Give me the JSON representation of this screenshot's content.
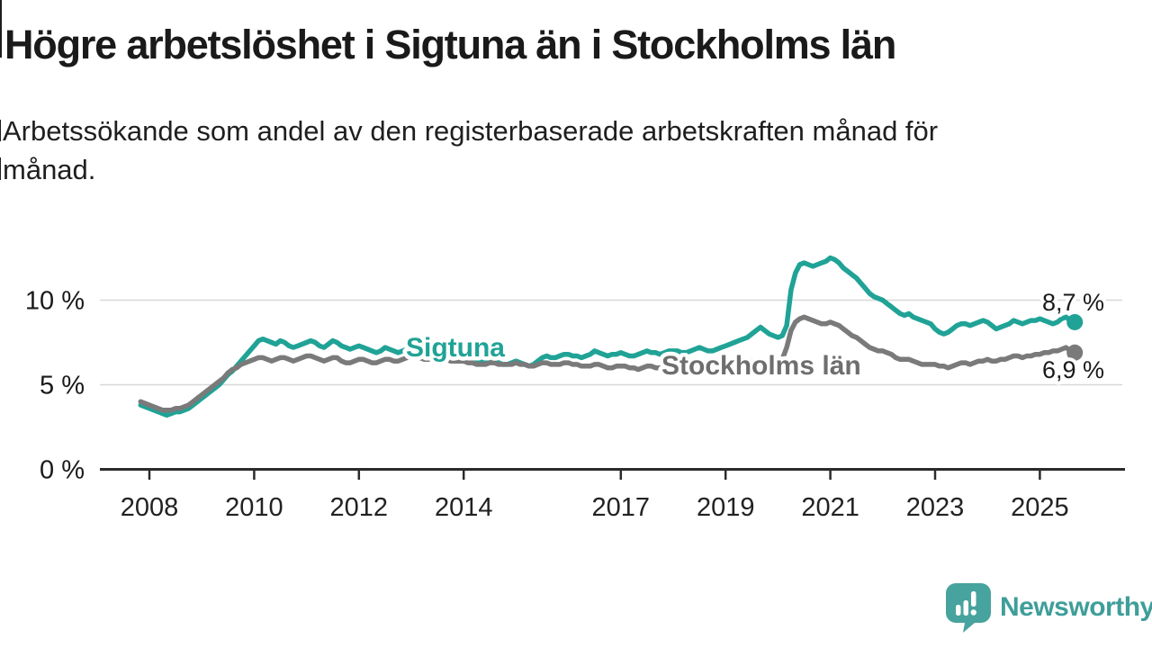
{
  "header": {
    "title": "Högre arbetslöshet i Sigtuna än i Stockholms län",
    "subtitle": "Arbetssökande som andel av den registerbaserade arbetskraften månad för\nmånad."
  },
  "footer": {
    "brand": "Newsworthy",
    "brand_color": "#3f9e99",
    "logo_icon": "newsworthy-speech-bubble-bar-chart-icon",
    "logo_fill": "#47a39e"
  },
  "chart_data": {
    "type": "line",
    "unit": "%",
    "grid": "horizontal",
    "legend_position": "inline-labels",
    "x_axis": {
      "tick_years": [
        2008,
        2010,
        2012,
        2014,
        2017,
        2019,
        2021,
        2023,
        2025
      ],
      "start": "2007-11",
      "end": "2025-09",
      "frequency": "monthly"
    },
    "y_axis": {
      "ticks": [
        0,
        5,
        10
      ],
      "tick_labels": [
        "0 %",
        "5 %",
        "10 %"
      ],
      "ylim": [
        0,
        13.5
      ],
      "gridline_values": [
        5,
        10
      ]
    },
    "colors": {
      "sigtuna": "#20a396",
      "stockholm_line": "#7a7a7a",
      "stockholm_label": "#6e6e6e",
      "axis": "#2b2b2b",
      "gridline": "#d8d8d8",
      "end_value_text": "#1a1a1a"
    },
    "series": [
      {
        "name": "Sigtuna",
        "inline_label": "Sigtuna",
        "end_label": "8,7 %",
        "end_value": 8.7,
        "start_decimal_year": 2007.8333,
        "values": [
          3.8,
          3.7,
          3.6,
          3.5,
          3.4,
          3.3,
          3.2,
          3.3,
          3.4,
          3.4,
          3.5,
          3.6,
          3.8,
          4.0,
          4.2,
          4.4,
          4.6,
          4.8,
          5.0,
          5.3,
          5.6,
          5.8,
          6.1,
          6.4,
          6.7,
          7.0,
          7.3,
          7.6,
          7.7,
          7.6,
          7.5,
          7.4,
          7.6,
          7.5,
          7.3,
          7.2,
          7.3,
          7.4,
          7.5,
          7.6,
          7.5,
          7.3,
          7.2,
          7.4,
          7.6,
          7.5,
          7.3,
          7.2,
          7.1,
          7.2,
          7.3,
          7.2,
          7.1,
          7.0,
          6.9,
          7.0,
          7.2,
          7.1,
          7.0,
          6.9,
          7.0,
          7.1,
          7.2,
          7.3,
          7.2,
          7.1,
          7.2,
          7.3,
          7.4,
          7.3,
          7.2,
          7.1,
          7.0,
          7.0,
          6.9,
          6.8,
          6.7,
          6.5,
          6.4,
          6.4,
          6.5,
          6.4,
          6.3,
          6.2,
          6.2,
          6.3,
          6.4,
          6.3,
          6.2,
          6.1,
          6.2,
          6.4,
          6.6,
          6.7,
          6.6,
          6.6,
          6.7,
          6.8,
          6.8,
          6.7,
          6.7,
          6.6,
          6.7,
          6.8,
          7.0,
          6.9,
          6.8,
          6.7,
          6.8,
          6.8,
          6.9,
          6.8,
          6.7,
          6.7,
          6.8,
          6.9,
          7.0,
          6.9,
          6.9,
          6.8,
          6.9,
          7.0,
          7.0,
          7.0,
          6.9,
          6.9,
          7.0,
          7.1,
          7.2,
          7.1,
          7.0,
          7.0,
          7.1,
          7.2,
          7.3,
          7.4,
          7.5,
          7.6,
          7.7,
          7.8,
          8.0,
          8.2,
          8.4,
          8.2,
          8.0,
          7.9,
          7.8,
          7.9,
          8.5,
          10.6,
          11.6,
          12.1,
          12.2,
          12.1,
          12.0,
          12.1,
          12.2,
          12.3,
          12.5,
          12.4,
          12.2,
          11.9,
          11.7,
          11.5,
          11.3,
          11.0,
          10.7,
          10.4,
          10.2,
          10.1,
          10.0,
          9.8,
          9.6,
          9.4,
          9.2,
          9.1,
          9.2,
          9.0,
          8.9,
          8.8,
          8.7,
          8.6,
          8.3,
          8.1,
          8.0,
          8.1,
          8.3,
          8.5,
          8.6,
          8.6,
          8.5,
          8.6,
          8.7,
          8.8,
          8.7,
          8.5,
          8.3,
          8.4,
          8.5,
          8.6,
          8.8,
          8.7,
          8.6,
          8.7,
          8.8,
          8.8,
          8.9,
          8.8,
          8.7,
          8.6,
          8.7,
          8.9,
          9.0,
          8.8,
          8.7
        ]
      },
      {
        "name": "Stockholms län",
        "inline_label": "Stockholms län",
        "end_label": "6,9 %",
        "end_value": 6.9,
        "start_decimal_year": 2007.8333,
        "values": [
          4.0,
          3.9,
          3.8,
          3.7,
          3.6,
          3.5,
          3.5,
          3.5,
          3.6,
          3.6,
          3.7,
          3.8,
          4.0,
          4.2,
          4.4,
          4.6,
          4.8,
          5.0,
          5.2,
          5.4,
          5.7,
          5.9,
          6.0,
          6.2,
          6.3,
          6.4,
          6.5,
          6.6,
          6.6,
          6.5,
          6.4,
          6.5,
          6.6,
          6.6,
          6.5,
          6.4,
          6.5,
          6.6,
          6.7,
          6.7,
          6.6,
          6.5,
          6.4,
          6.5,
          6.6,
          6.6,
          6.4,
          6.3,
          6.3,
          6.4,
          6.5,
          6.5,
          6.4,
          6.3,
          6.3,
          6.4,
          6.5,
          6.5,
          6.4,
          6.4,
          6.5,
          6.6,
          6.7,
          6.7,
          6.6,
          6.5,
          6.5,
          6.6,
          6.7,
          6.6,
          6.5,
          6.4,
          6.4,
          6.4,
          6.4,
          6.3,
          6.3,
          6.2,
          6.2,
          6.2,
          6.3,
          6.3,
          6.2,
          6.2,
          6.2,
          6.2,
          6.3,
          6.2,
          6.2,
          6.1,
          6.1,
          6.2,
          6.3,
          6.3,
          6.2,
          6.2,
          6.2,
          6.3,
          6.3,
          6.2,
          6.2,
          6.1,
          6.1,
          6.1,
          6.2,
          6.2,
          6.1,
          6.0,
          6.0,
          6.1,
          6.1,
          6.1,
          6.0,
          6.0,
          5.9,
          6.0,
          6.1,
          6.1,
          6.0,
          6.0,
          6.0,
          6.1,
          6.1,
          6.1,
          6.0,
          6.0,
          6.0,
          6.1,
          6.2,
          6.1,
          6.0,
          6.0,
          6.1,
          6.1,
          6.2,
          6.2,
          6.2,
          6.2,
          6.3,
          6.3,
          6.4,
          6.4,
          6.4,
          6.4,
          6.4,
          6.4,
          6.4,
          6.5,
          7.2,
          8.2,
          8.7,
          8.9,
          9.0,
          8.9,
          8.8,
          8.7,
          8.6,
          8.6,
          8.7,
          8.6,
          8.5,
          8.3,
          8.1,
          7.9,
          7.8,
          7.6,
          7.4,
          7.2,
          7.1,
          7.0,
          7.0,
          6.9,
          6.8,
          6.6,
          6.5,
          6.5,
          6.5,
          6.4,
          6.3,
          6.2,
          6.2,
          6.2,
          6.2,
          6.1,
          6.1,
          6.0,
          6.1,
          6.2,
          6.3,
          6.3,
          6.2,
          6.3,
          6.4,
          6.4,
          6.5,
          6.4,
          6.4,
          6.5,
          6.5,
          6.6,
          6.7,
          6.7,
          6.6,
          6.7,
          6.7,
          6.8,
          6.8,
          6.9,
          6.9,
          7.0,
          7.0,
          7.1,
          7.2,
          7.0,
          6.9
        ]
      }
    ]
  }
}
